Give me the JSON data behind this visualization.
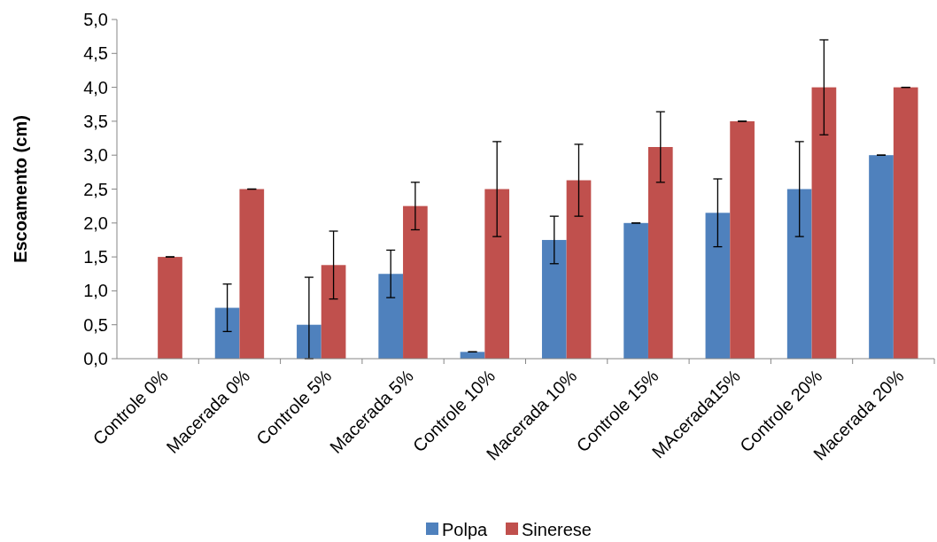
{
  "chart_data": {
    "type": "bar",
    "ylabel": "Escoamento (cm)",
    "categories": [
      "Controle 0%",
      "Macerada 0%",
      "Controle 5%",
      "Macerada 5%",
      "Controle 10%",
      "Macerada 10%",
      "Controle 15%",
      "MAcerada15%",
      "Controle 20%",
      "Macerada 20%"
    ],
    "series": [
      {
        "name": "Polpa",
        "color": "#4f81bd",
        "values": [
          0,
          0.75,
          0.5,
          1.25,
          0.1,
          1.75,
          2.0,
          2.15,
          2.5,
          3.0
        ],
        "errors": [
          null,
          0.35,
          [
            0,
            1.2
          ],
          0.35,
          0,
          0.35,
          0,
          0.5,
          0.7,
          0
        ]
      },
      {
        "name": "Sinerese",
        "color": "#c0504d",
        "values": [
          1.5,
          2.5,
          1.38,
          2.25,
          2.5,
          2.63,
          3.12,
          3.5,
          4.0,
          4.0
        ],
        "errors": [
          0,
          0,
          0.5,
          0.35,
          0.7,
          0.53,
          0.52,
          0,
          0.7,
          0
        ]
      }
    ],
    "ylim": [
      0,
      5
    ],
    "yticks": [
      {
        "value": 0,
        "label": "0,0"
      },
      {
        "value": 0.5,
        "label": "0,5"
      },
      {
        "value": 1,
        "label": "1,0"
      },
      {
        "value": 1.5,
        "label": "1,5"
      },
      {
        "value": 2,
        "label": "2,0"
      },
      {
        "value": 2.5,
        "label": "2,5"
      },
      {
        "value": 3,
        "label": "3,0"
      },
      {
        "value": 3.5,
        "label": "3,5"
      },
      {
        "value": 4,
        "label": "4,0"
      },
      {
        "value": 4.5,
        "label": "4,5"
      },
      {
        "value": 5,
        "label": "5,0"
      }
    ],
    "grid": false,
    "legend": "bottom"
  }
}
